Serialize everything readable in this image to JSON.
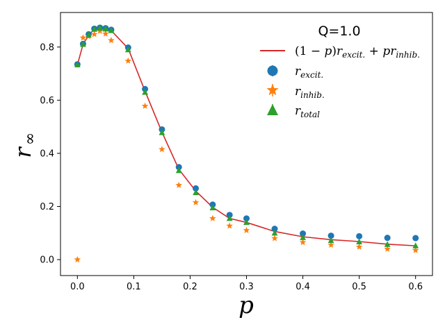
{
  "chart_data": {
    "type": "line",
    "title": "",
    "legend_title": "Q=1.0",
    "legend_position": "top-right",
    "xlabel": "p",
    "ylabel_main": "r",
    "ylabel_sub": "∞",
    "xlim": [
      -0.03,
      0.63
    ],
    "ylim": [
      -0.06,
      0.93
    ],
    "xticks": [
      0.0,
      0.1,
      0.2,
      0.3,
      0.4,
      0.5,
      0.6
    ],
    "xtick_labels": [
      "0.0",
      "0.1",
      "0.2",
      "0.3",
      "0.4",
      "0.5",
      "0.6"
    ],
    "yticks": [
      0.0,
      0.2,
      0.4,
      0.6,
      0.8
    ],
    "ytick_labels": [
      "0.0",
      "0.2",
      "0.4",
      "0.6",
      "0.8"
    ],
    "grid": false,
    "x": [
      0.0,
      0.01,
      0.02,
      0.03,
      0.04,
      0.05,
      0.06,
      0.09,
      0.12,
      0.15,
      0.18,
      0.21,
      0.24,
      0.27,
      0.3,
      0.35,
      0.4,
      0.45,
      0.5,
      0.55,
      0.6
    ],
    "series": [
      {
        "name": "(1 − p)r_excit. + pr_inhib.",
        "legend_main_1": "(1 − ",
        "legend_main_2": ")",
        "legend_p": "p",
        "legend_r1": "r",
        "legend_r1_sub": "excit.",
        "legend_plus": " + ",
        "legend_r2": "r",
        "legend_r2_sub": "inhib.",
        "kind": "line",
        "color": "#d62728",
        "x": [
          0.0,
          0.01,
          0.02,
          0.03,
          0.04,
          0.05,
          0.06,
          0.09,
          0.12,
          0.15,
          0.18,
          0.21,
          0.24,
          0.27,
          0.3,
          0.35,
          0.4,
          0.45,
          0.5,
          0.55,
          0.6
        ],
        "values": [
          0.733,
          0.81,
          0.845,
          0.867,
          0.871,
          0.868,
          0.862,
          0.795,
          0.634,
          0.48,
          0.34,
          0.258,
          0.197,
          0.155,
          0.14,
          0.106,
          0.086,
          0.075,
          0.068,
          0.058,
          0.052
        ]
      },
      {
        "name": "r_excit.",
        "legend_main": "r",
        "legend_sub": "excit.",
        "kind": "circle",
        "color": "#1f77b4",
        "x": [
          0.0,
          0.01,
          0.02,
          0.03,
          0.04,
          0.05,
          0.06,
          0.09,
          0.12,
          0.15,
          0.18,
          0.21,
          0.24,
          0.27,
          0.3,
          0.35,
          0.4,
          0.45,
          0.5,
          0.55,
          0.6
        ],
        "values": [
          0.735,
          0.812,
          0.848,
          0.869,
          0.873,
          0.871,
          0.865,
          0.798,
          0.642,
          0.49,
          0.348,
          0.268,
          0.207,
          0.168,
          0.155,
          0.116,
          0.098,
          0.09,
          0.088,
          0.082,
          0.081
        ]
      },
      {
        "name": "r_inhib.",
        "legend_main": "r",
        "legend_sub": "inhib.",
        "kind": "star",
        "color": "#ff7f0e",
        "x": [
          0.0,
          0.01,
          0.02,
          0.03,
          0.04,
          0.05,
          0.06,
          0.09,
          0.12,
          0.15,
          0.18,
          0.21,
          0.24,
          0.27,
          0.3,
          0.35,
          0.4,
          0.45,
          0.5,
          0.55,
          0.6
        ],
        "values": [
          0.0,
          0.835,
          0.84,
          0.848,
          0.86,
          0.85,
          0.825,
          0.748,
          0.578,
          0.415,
          0.28,
          0.215,
          0.155,
          0.127,
          0.11,
          0.08,
          0.065,
          0.055,
          0.048,
          0.04,
          0.035
        ]
      },
      {
        "name": "r_total",
        "legend_main": "r",
        "legend_sub": "total",
        "kind": "triangle",
        "color": "#2ca02c",
        "x": [
          0.0,
          0.01,
          0.02,
          0.03,
          0.04,
          0.05,
          0.06,
          0.09,
          0.12,
          0.15,
          0.18,
          0.21,
          0.24,
          0.27,
          0.3,
          0.35,
          0.4,
          0.45,
          0.5,
          0.55,
          0.6
        ],
        "values": [
          0.733,
          0.81,
          0.845,
          0.867,
          0.871,
          0.868,
          0.862,
          0.79,
          0.63,
          0.478,
          0.335,
          0.252,
          0.195,
          0.155,
          0.14,
          0.1,
          0.083,
          0.072,
          0.067,
          0.057,
          0.052
        ]
      }
    ]
  }
}
